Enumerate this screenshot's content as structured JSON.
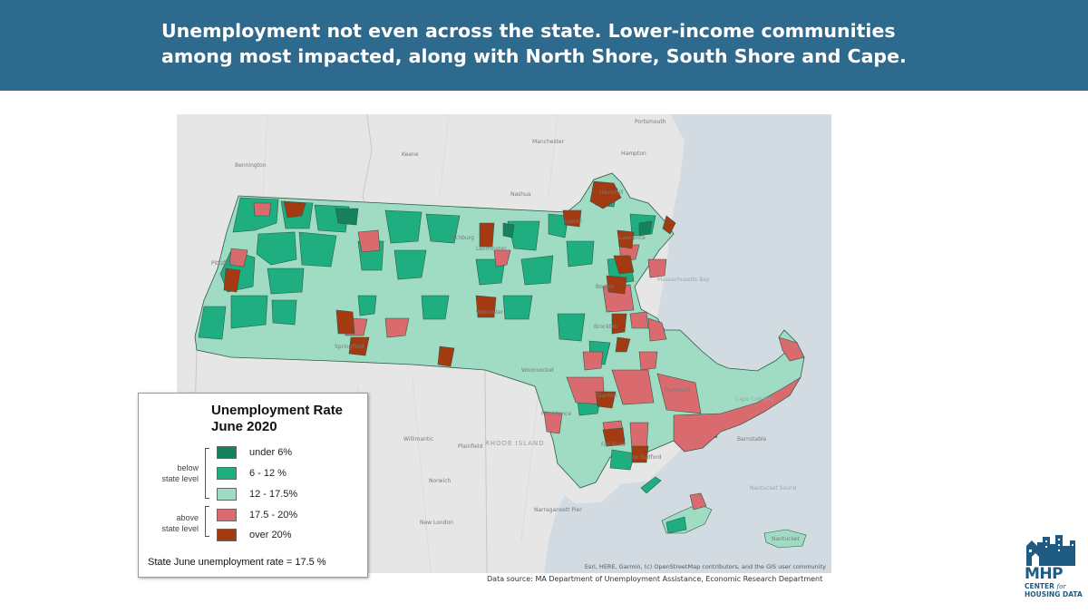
{
  "header": {
    "title_line1": "Unemployment not even across the state. Lower-income communities",
    "title_line2": "among most impacted, along with North Shore, South Shore and Cape."
  },
  "colors": {
    "banner": "#2e6a8e",
    "under_6": "#17805f",
    "r6_12": "#1eae80",
    "r12_17_5": "#9fdcc3",
    "r17_5_20": "#d96a6e",
    "over_20": "#a33a12",
    "basemap_land": "#e6e6e6",
    "water": "#d2dbe1"
  },
  "map": {
    "places": {
      "portsmouth": "Portsmouth",
      "manchester": "Manchester",
      "hampton": "Hampton",
      "keene": "Keene",
      "nashua": "Nashua",
      "bennington": "Bennington",
      "haverhill": "Haverhill",
      "lowell": "Lowell",
      "lawrence": "Lawrence",
      "pittsfield": "Pittsfield",
      "fitchburg": "Fitchburg",
      "leominster": "Leominster",
      "worcester": "Worcester",
      "springfield": "Springfield",
      "boston": "Boston",
      "brockton": "Brockton",
      "woonsocket": "Woonsocket",
      "providence": "Providence",
      "taunton": "Taunton",
      "plymouth": "Plymouth",
      "fall_river": "Fall River",
      "new_bedford": "New Bedford",
      "barnstable": "Barnstable",
      "willimantic": "Willimantic",
      "plainfield": "Plainfield",
      "norwich": "Norwich",
      "new_london": "New London",
      "narragansett": "Narragansett Pier",
      "nantucket": "Nantucket",
      "massachusetts_bay": "Massachusetts Bay",
      "cape_cod_bay": "Cape Cod Bay",
      "nantucket_sound": "Nantucket Sound",
      "rhode_island": "RHODE ISLAND"
    },
    "attribution": "Esri, HERE, Garmin, (c) OpenStreetMap contributors, and the GIS user community"
  },
  "legend": {
    "title_line1": "Unemployment Rate",
    "title_line2": "June 2020",
    "group_below_line1": "below",
    "group_below_line2": "state level",
    "group_above_line1": "above",
    "group_above_line2": "state level",
    "items": [
      {
        "label": "under 6%",
        "color": "#17805f"
      },
      {
        "label": "6 - 12 %",
        "color": "#1eae80"
      },
      {
        "label": "12 - 17.5%",
        "color": "#9fdcc3"
      },
      {
        "label": "17.5 - 20%",
        "color": "#d96a6e"
      },
      {
        "label": "over 20%",
        "color": "#a33a12"
      }
    ],
    "state_rate": "State June unemployment rate = 17.5 %"
  },
  "footer": {
    "source": "Data source: MA Department of Unemployment Assistance, Economic Research Department"
  },
  "logo": {
    "mhp": "MHP",
    "center": "CENTER",
    "for": "for",
    "housing_data": "HOUSING DATA"
  }
}
